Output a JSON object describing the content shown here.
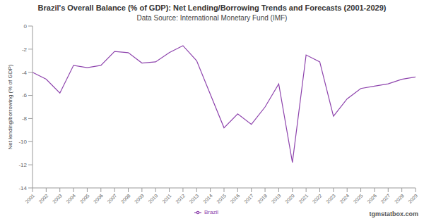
{
  "chart_data": {
    "type": "line",
    "title": "Brazil's Overall Balance (% of GDP): Net Lending/Borrowing Trends and Forecasts (2001-2029)",
    "subtitle": "Data Source: International Monetary Fund (IMF)",
    "y_label": "Net lending/borrowing (% of GDP)",
    "watermark": "tgmstatbox.com",
    "categories": [
      "2001",
      "2002",
      "2003",
      "2004",
      "2005",
      "2006",
      "2007",
      "2008",
      "2009",
      "2010",
      "2011",
      "2012",
      "2013",
      "2014",
      "2015",
      "2016",
      "2017",
      "2018",
      "2019",
      "2020",
      "2021",
      "2022",
      "2023",
      "2024",
      "2025",
      "2026",
      "2027",
      "2028",
      "2029"
    ],
    "series": [
      {
        "name": "Brazil",
        "color": "#8e44ad",
        "values": [
          -4.0,
          -4.6,
          -5.8,
          -3.4,
          -3.6,
          -3.4,
          -2.2,
          -2.3,
          -3.2,
          -3.1,
          -2.3,
          -1.7,
          -3.0,
          -5.9,
          -8.8,
          -7.6,
          -8.5,
          -7.0,
          -5.0,
          -11.8,
          -2.5,
          -3.1,
          -7.8,
          -6.3,
          -5.4,
          -5.2,
          -5.0,
          -4.6,
          -4.4
        ]
      }
    ],
    "ylim": [
      -14,
      0
    ],
    "yticks": [
      -14,
      -12,
      -10,
      -8,
      -6,
      -4,
      -2,
      0
    ],
    "grid": false,
    "legend": "bottom"
  }
}
